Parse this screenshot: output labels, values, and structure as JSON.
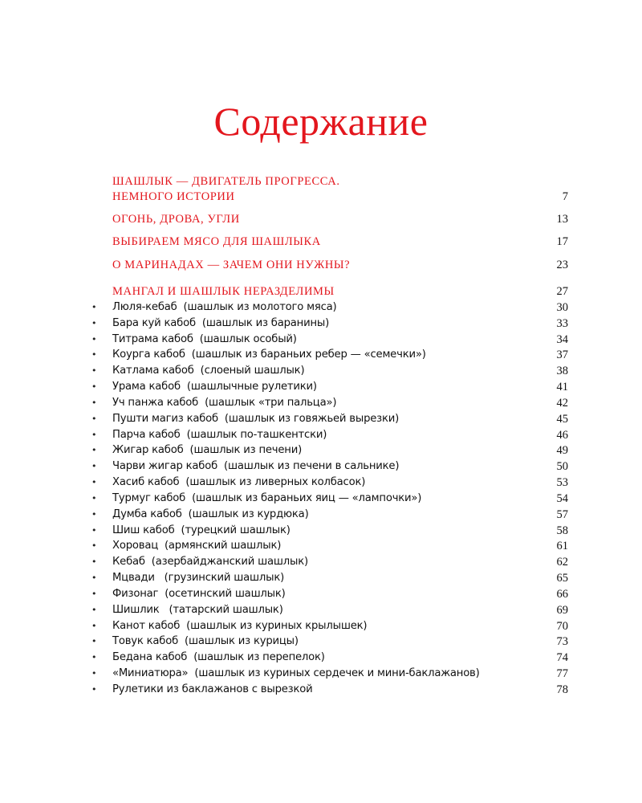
{
  "title": "Содержание",
  "colors": {
    "accent": "#e3161d",
    "text": "#111111"
  },
  "sections": [
    {
      "lines": [
        "ШАШЛЫК — ДВИГАТЕЛЬ ПРОГРЕССА.",
        "НЕМНОГО ИСТОРИИ"
      ],
      "page": "7"
    },
    {
      "lines": [
        "ОГОНЬ, ДРОВА, УГЛИ"
      ],
      "page": "13"
    },
    {
      "lines": [
        "ВЫБИРАЕМ МЯСО ДЛЯ ШАШЛЫКА"
      ],
      "page": "17"
    },
    {
      "lines": [
        "О МАРИНАДАХ — ЗАЧЕМ ОНИ НУЖНЫ?"
      ],
      "page": "23"
    },
    {
      "lines": [
        "МАНГАЛ И ШАШЛЫК НЕРАЗДЕЛИМЫ"
      ],
      "page": "27"
    }
  ],
  "items": [
    {
      "text": "Люля-кебаб  (шашлык из молотого мяса)",
      "page": "30"
    },
    {
      "text": "Бара куй кабоб  (шашлык из баранины)",
      "page": "33"
    },
    {
      "text": "Титрама кабоб  (шашлык особый)",
      "page": "34"
    },
    {
      "text": "Коурга кабоб  (шашлык из бараньих ребер — «семечки»)",
      "page": "37"
    },
    {
      "text": "Катлама кабоб  (слоеный шашлык)",
      "page": "38"
    },
    {
      "text": "Урама кабоб  (шашлычные рулетики)",
      "page": "41"
    },
    {
      "text": "Уч панжа кабоб  (шашлык «три пальца»)",
      "page": "42"
    },
    {
      "text": "Пушти магиз кабоб  (шашлык из говяжьей вырезки)",
      "page": "45"
    },
    {
      "text": "Парча кабоб  (шашлык по-ташкентски)",
      "page": "46"
    },
    {
      "text": "Жигар кабоб  (шашлык из печени)",
      "page": "49"
    },
    {
      "text": "Чарви жигар кабоб  (шашлык из печени в сальнике)",
      "page": "50"
    },
    {
      "text": "Хасиб кабоб  (шашлык из ливерных колбасок)",
      "page": "53"
    },
    {
      "text": "Турмуг кабоб  (шашлык из бараньих яиц — «лампочки»)",
      "page": "54"
    },
    {
      "text": "Думба кабоб  (шашлык из курдюка)",
      "page": "57"
    },
    {
      "text": "Шиш кабоб  (турецкий шашлык)",
      "page": "58"
    },
    {
      "text": "Хоровац  (армянский шашлык)",
      "page": "61"
    },
    {
      "text": "Кебаб  (азербайджанский шашлык)",
      "page": "62"
    },
    {
      "text": "Мцвади   (грузинский шашлык)",
      "page": "65"
    },
    {
      "text": "Физонаг  (осетинский шашлык)",
      "page": "66"
    },
    {
      "text": "Шишлик   (татарский шашлык)",
      "page": "69"
    },
    {
      "text": "Канот кабоб  (шашлык из куриных крылышек)",
      "page": "70"
    },
    {
      "text": "Товук кабоб  (шашлык из курицы)",
      "page": "73"
    },
    {
      "text": "Бедана кабоб  (шашлык из перепелок)",
      "page": "74"
    },
    {
      "text": "«Миниатюра»  (шашлык из куриных сердечек и мини-баклажанов)",
      "page": "77"
    },
    {
      "text": "Рулетики из баклажанов с вырезкой",
      "page": "78"
    }
  ],
  "bullet": "•"
}
